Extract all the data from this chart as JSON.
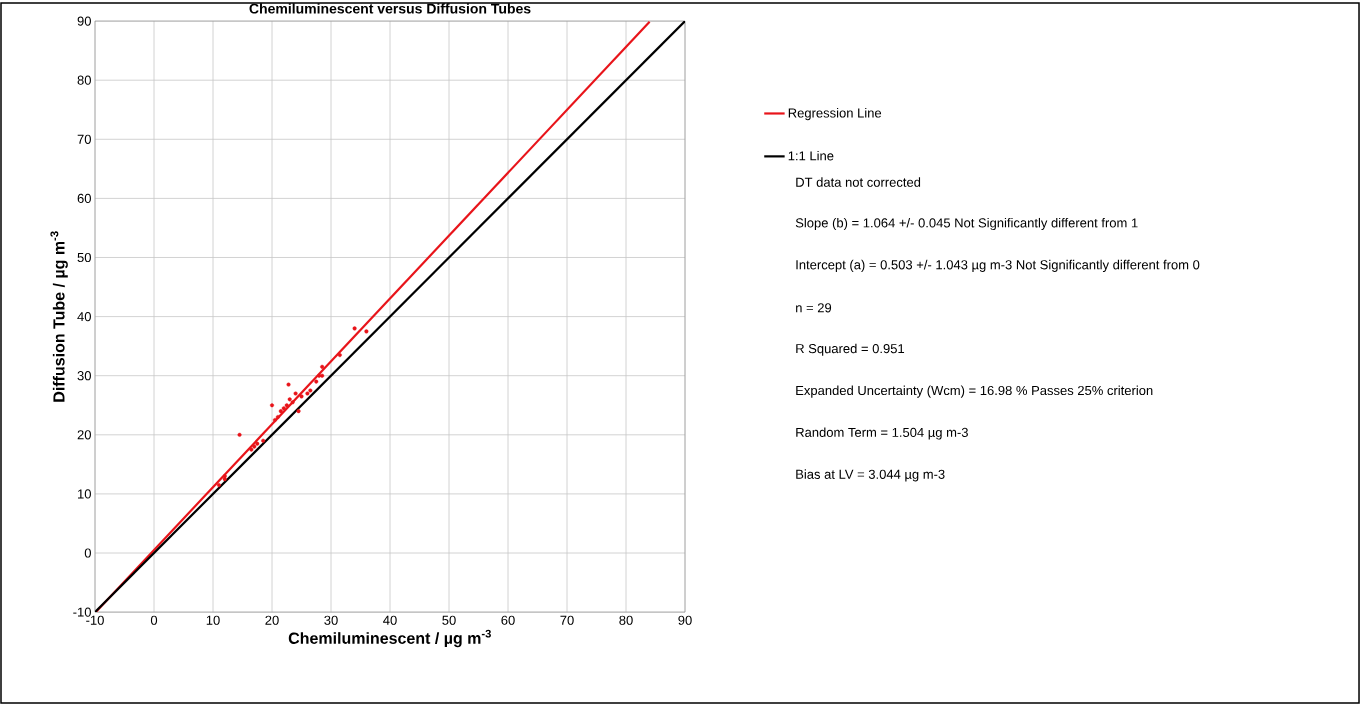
{
  "chart_data": {
    "type": "scatter",
    "title": "Chemiluminescent  versus Diffusion Tubes",
    "xlabel": "Chemiluminescent  / µg m$^{-3}$",
    "ylabel": "Diffusion Tube / µg m$^{-3}$",
    "xlim": [
      -10,
      90
    ],
    "ylim": [
      -10,
      90
    ],
    "xticks": [
      -10,
      0,
      10,
      20,
      30,
      40,
      50,
      60,
      70,
      80,
      90
    ],
    "yticks": [
      -10,
      0,
      10,
      20,
      30,
      40,
      50,
      60,
      70,
      80,
      90
    ],
    "grid": true,
    "legend": "right",
    "x": [
      11,
      12,
      12,
      14.5,
      16.5,
      17,
      17.5,
      18.5,
      20,
      20.5,
      21,
      21.5,
      22,
      22.5,
      22.8,
      23,
      23.5,
      24,
      24.5,
      25,
      26,
      26.5,
      27.5,
      28,
      28.5,
      28.5,
      31.5,
      34,
      36
    ],
    "series": [
      {
        "color": "#e8141a",
        "marker": "circle",
        "values": [
          11.5,
          12.5,
          13,
          20,
          17.5,
          18,
          18.5,
          19,
          25,
          22.5,
          23,
          24,
          24.5,
          25,
          28.5,
          26,
          25.5,
          27,
          24,
          26.5,
          27,
          27.5,
          29,
          30,
          31.5,
          30,
          33.5,
          38,
          37.5
        ]
      },
      {
        "type": "line",
        "name": "Regression Line",
        "color": "#e8141a",
        "marker": "none",
        "x": [
          -9.8,
          84
        ],
        "values": [
          -9.924,
          89.879
        ]
      },
      {
        "type": "line",
        "name": "1:1 Line",
        "color": "#000000",
        "marker": "none",
        "x": [
          -10,
          90
        ],
        "values": [
          -10,
          90
        ]
      }
    ],
    "annotations": [
      "DT data not corrected",
      "Slope (b) = 1.064 +/- 0.045  Not Significantly different from 1",
      "Intercept (a) = 0.503 +/- 1.043 µg m-3  Not Significantly different from 0",
      "n = 29",
      "R Squared = 0.951",
      "Expanded Uncertainty (Wcm) = 16.98 %  Passes 25% criterion",
      "Random Term = 1.504 µg m-3",
      "Bias at LV = 3.044 µg m-3"
    ]
  }
}
